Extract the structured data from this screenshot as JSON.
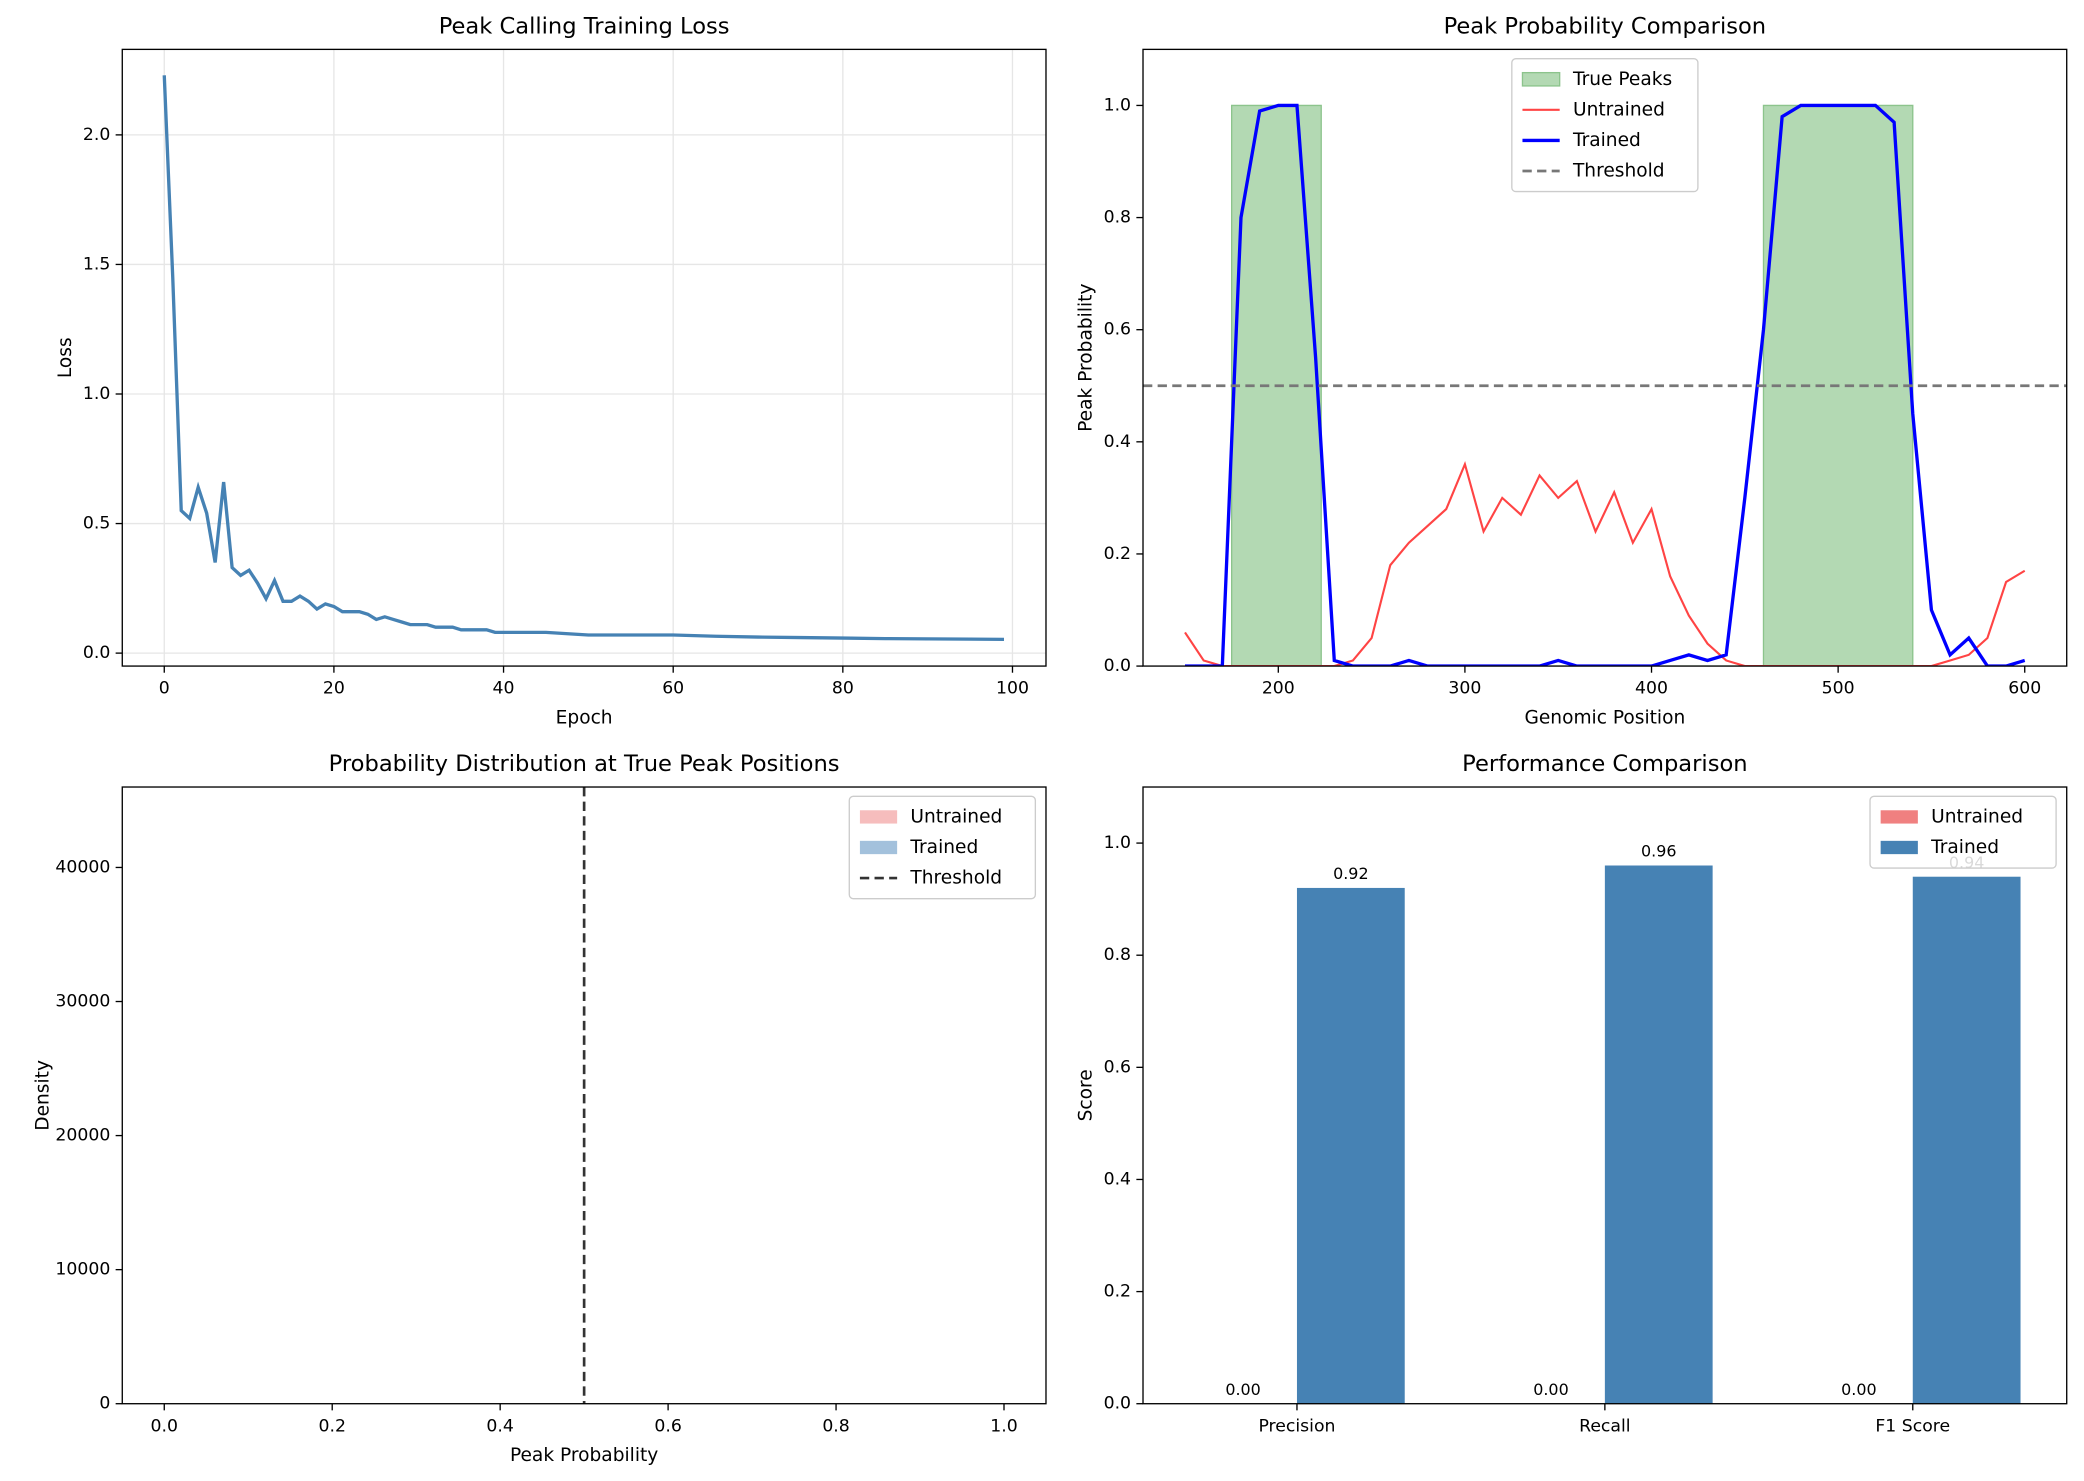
{
  "chart_data": [
    {
      "type": "line",
      "title": "Peak Calling Training Loss",
      "xlabel": "Epoch",
      "ylabel": "Loss",
      "color": "#4682b4",
      "grid": true,
      "x": [
        0,
        1,
        2,
        3,
        4,
        5,
        6,
        7,
        8,
        9,
        10,
        11,
        12,
        13,
        14,
        15,
        16,
        17,
        18,
        19,
        20,
        21,
        22,
        23,
        24,
        25,
        26,
        27,
        28,
        29,
        30,
        31,
        32,
        33,
        34,
        35,
        36,
        37,
        38,
        39,
        40,
        45,
        50,
        55,
        60,
        65,
        70,
        75,
        80,
        85,
        90,
        95,
        99
      ],
      "values": [
        2.23,
        1.45,
        0.55,
        0.52,
        0.64,
        0.54,
        0.35,
        0.66,
        0.33,
        0.3,
        0.32,
        0.27,
        0.21,
        0.28,
        0.2,
        0.2,
        0.22,
        0.2,
        0.17,
        0.19,
        0.18,
        0.16,
        0.16,
        0.16,
        0.15,
        0.13,
        0.14,
        0.13,
        0.12,
        0.11,
        0.11,
        0.11,
        0.1,
        0.1,
        0.1,
        0.09,
        0.09,
        0.09,
        0.09,
        0.08,
        0.08,
        0.08,
        0.07,
        0.07,
        0.07,
        0.065,
        0.062,
        0.06,
        0.058,
        0.056,
        0.055,
        0.054,
        0.053
      ],
      "xlim": [
        -4.95,
        103.95
      ],
      "xticks": [
        0,
        20,
        40,
        60,
        80,
        100
      ],
      "ylim": [
        -0.05,
        2.33
      ],
      "yticks": [
        {
          "value": 0,
          "label": "0.0"
        },
        {
          "value": 0.5,
          "label": "0.5"
        },
        {
          "value": 1,
          "label": "1.0"
        },
        {
          "value": 1.5,
          "label": "1.5"
        },
        {
          "value": 2,
          "label": "2.0"
        }
      ]
    },
    {
      "type": "line",
      "title": "Peak Probability Comparison",
      "xlabel": "Genomic Position",
      "ylabel": "Peak Probability",
      "legend": "upper center",
      "x": [
        150,
        160,
        170,
        180,
        190,
        200,
        210,
        220,
        230,
        240,
        250,
        260,
        270,
        280,
        290,
        300,
        310,
        320,
        330,
        340,
        350,
        360,
        370,
        380,
        390,
        400,
        410,
        420,
        430,
        440,
        450,
        460,
        470,
        480,
        490,
        500,
        510,
        520,
        530,
        540,
        550,
        560,
        570,
        580,
        590,
        600
      ],
      "series": [
        {
          "name": "True Peaks",
          "kind": "area",
          "color": "#b3d9b3",
          "x": [
            175,
            175,
            223,
            223,
            460,
            460,
            540,
            540
          ],
          "values": [
            0,
            1,
            1,
            0,
            0,
            1,
            1,
            0
          ]
        },
        {
          "name": "Untrained",
          "kind": "line",
          "color": "#ff4444",
          "linewidth": 1.6,
          "values": [
            0.06,
            0.01,
            0,
            0,
            0,
            0,
            0,
            0,
            0,
            0.01,
            0.05,
            0.18,
            0.22,
            0.25,
            0.28,
            0.36,
            0.24,
            0.3,
            0.27,
            0.34,
            0.3,
            0.33,
            0.24,
            0.31,
            0.22,
            0.28,
            0.16,
            0.09,
            0.04,
            0.01,
            0,
            0,
            0,
            0,
            0,
            0,
            0,
            0,
            0,
            0,
            0,
            0.01,
            0.02,
            0.05,
            0.15,
            0.17
          ]
        },
        {
          "name": "Trained",
          "kind": "line",
          "color": "#0000ff",
          "linewidth": 2.5,
          "values": [
            0,
            0,
            0,
            0.8,
            0.99,
            1,
            1,
            0.55,
            0.01,
            0,
            0,
            0,
            0.01,
            0,
            0,
            0,
            0,
            0,
            0,
            0,
            0.01,
            0,
            0,
            0,
            0,
            0,
            0.01,
            0.02,
            0.01,
            0.02,
            0.3,
            0.6,
            0.98,
            1,
            1,
            1,
            1,
            1,
            0.97,
            0.45,
            0.1,
            0.02,
            0.05,
            0,
            0,
            0.01
          ]
        },
        {
          "name": "Threshold",
          "kind": "hline",
          "color": "#777777",
          "dashed": true,
          "value": 0.5
        }
      ],
      "xlim": [
        127.5,
        622.5
      ],
      "xticks": [
        200,
        300,
        400,
        500,
        600
      ],
      "ylim": [
        0,
        1.1
      ],
      "yticks": [
        {
          "value": 0,
          "label": "0.0"
        },
        {
          "value": 0.2,
          "label": "0.2"
        },
        {
          "value": 0.4,
          "label": "0.4"
        },
        {
          "value": 0.6,
          "label": "0.6"
        },
        {
          "value": 0.8,
          "label": "0.8"
        },
        {
          "value": 1,
          "label": "1.0"
        }
      ]
    },
    {
      "type": "histogram",
      "title": "Probability Distribution at True Peak Positions",
      "xlabel": "Peak Probability",
      "ylabel": "Density",
      "legend": "upper right",
      "series": [
        {
          "name": "Untrained",
          "kind": "patch",
          "color": "#f6bdbd"
        },
        {
          "name": "Trained",
          "kind": "patch",
          "color": "#a3c1dc"
        },
        {
          "name": "Threshold",
          "kind": "vline",
          "color": "#333333",
          "dashed": true,
          "value": 0.5
        }
      ],
      "xlim": [
        -0.05,
        1.05
      ],
      "xticks": [
        {
          "value": 0,
          "label": "0.0"
        },
        {
          "value": 0.2,
          "label": "0.2"
        },
        {
          "value": 0.4,
          "label": "0.4"
        },
        {
          "value": 0.6,
          "label": "0.6"
        },
        {
          "value": 0.8,
          "label": "0.8"
        },
        {
          "value": 1,
          "label": "1.0"
        }
      ],
      "ylim": [
        0,
        46000
      ],
      "yticks": [
        0,
        10000,
        20000,
        30000,
        40000
      ]
    },
    {
      "type": "bar",
      "title": "Performance Comparison",
      "ylabel": "Score",
      "legend": "upper right",
      "categories": [
        "Precision",
        "Recall",
        "F1 Score"
      ],
      "series": [
        {
          "name": "Untrained",
          "kind": "patch",
          "color": "#f08080",
          "values": [
            0,
            0,
            0
          ],
          "value_labels": [
            "0.00",
            "0.00",
            "0.00"
          ]
        },
        {
          "name": "Trained",
          "kind": "patch",
          "color": "#4682b4",
          "values": [
            0.92,
            0.96,
            0.94
          ],
          "value_labels": [
            "0.92",
            "0.96",
            "0.94"
          ]
        }
      ],
      "ylim": [
        0,
        1.1
      ],
      "yticks": [
        {
          "value": 0,
          "label": "0.0"
        },
        {
          "value": 0.2,
          "label": "0.2"
        },
        {
          "value": 0.4,
          "label": "0.4"
        },
        {
          "value": 0.6,
          "label": "0.6"
        },
        {
          "value": 0.8,
          "label": "0.8"
        },
        {
          "value": 1,
          "label": "1.0"
        }
      ]
    }
  ]
}
